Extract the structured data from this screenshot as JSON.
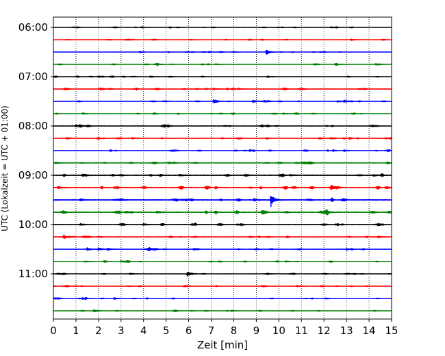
{
  "chart_data": {
    "type": "line",
    "title": "",
    "xlabel": "Zeit  [min]",
    "ylabel": "UTC (Lokalzeit = UTC + 01:00)",
    "xlim": [
      0,
      15
    ],
    "xticks": [
      0,
      1,
      2,
      3,
      4,
      5,
      6,
      7,
      8,
      9,
      10,
      11,
      12,
      13,
      14,
      15
    ],
    "xtick_labels": [
      "0",
      "1",
      "2",
      "3",
      "4",
      "5",
      "6",
      "7",
      "8",
      "9",
      "10",
      "11",
      "12",
      "13",
      "14",
      "15"
    ],
    "ytick_labels": [
      "06:00",
      "07:00",
      "08:00",
      "09:00",
      "10:00",
      "11:00"
    ],
    "ytick_rows": [
      0,
      4,
      8,
      12,
      16,
      20
    ],
    "row_interval_minutes": 15,
    "grid": "vertical dotted at each minute",
    "color_cycle": [
      "#000000",
      "#ff0000",
      "#0000ff",
      "#008000"
    ],
    "rows": [
      {
        "start": "06:00",
        "color": "#000000",
        "noise": 0.12,
        "events": [
          {
            "t": 3.9,
            "amp": 0.25
          },
          {
            "t": 12.3,
            "amp": 0.2
          }
        ]
      },
      {
        "start": "06:15",
        "color": "#ff0000",
        "noise": 0.1,
        "events": [
          {
            "t": 13.2,
            "amp": 0.3
          }
        ]
      },
      {
        "start": "06:30",
        "color": "#0000ff",
        "noise": 0.12,
        "events": [
          {
            "t": 9.45,
            "amp": 0.85
          },
          {
            "t": 6.9,
            "amp": 0.2
          }
        ]
      },
      {
        "start": "06:45",
        "color": "#008000",
        "noise": 0.12,
        "events": [
          {
            "t": 12.5,
            "amp": 0.35
          },
          {
            "t": 7.2,
            "amp": 0.2
          },
          {
            "t": 14.3,
            "amp": 0.3
          }
        ]
      },
      {
        "start": "07:00",
        "color": "#000000",
        "noise": 0.14,
        "events": [
          {
            "t": 9.5,
            "amp": 0.3
          },
          {
            "t": 4.3,
            "amp": 0.2
          }
        ]
      },
      {
        "start": "07:15",
        "color": "#ff0000",
        "noise": 0.22,
        "events": [
          {
            "t": 7.1,
            "amp": 0.3
          },
          {
            "t": 8.2,
            "amp": 0.25
          },
          {
            "t": 10.9,
            "amp": 0.3
          },
          {
            "t": 0.5,
            "amp": 0.25
          }
        ]
      },
      {
        "start": "07:30",
        "color": "#0000ff",
        "noise": 0.14,
        "events": [
          {
            "t": 7.1,
            "amp": 0.5
          },
          {
            "t": 8.85,
            "amp": 0.45
          },
          {
            "t": 12.9,
            "amp": 0.45
          },
          {
            "t": 12.6,
            "amp": 0.3
          }
        ]
      },
      {
        "start": "07:45",
        "color": "#008000",
        "noise": 0.14,
        "events": [
          {
            "t": 1.3,
            "amp": 0.25
          },
          {
            "t": 10.2,
            "amp": 0.25
          }
        ]
      },
      {
        "start": "08:00",
        "color": "#000000",
        "noise": 0.18,
        "events": [
          {
            "t": 1.0,
            "amp": 0.35
          },
          {
            "t": 4.9,
            "amp": 0.4
          },
          {
            "t": 4.8,
            "amp": 0.3
          }
        ]
      },
      {
        "start": "08:15",
        "color": "#ff0000",
        "noise": 0.18,
        "events": [
          {
            "t": 3.5,
            "amp": 0.25
          },
          {
            "t": 11.8,
            "amp": 0.35
          },
          {
            "t": 0.6,
            "amp": 0.25
          }
        ]
      },
      {
        "start": "08:30",
        "color": "#0000ff",
        "noise": 0.16,
        "events": [
          {
            "t": 8.7,
            "amp": 0.3
          },
          {
            "t": 12.4,
            "amp": 0.3
          },
          {
            "t": 12.9,
            "amp": 0.3
          }
        ]
      },
      {
        "start": "08:45",
        "color": "#008000",
        "noise": 0.18,
        "events": [
          {
            "t": 14.8,
            "amp": 0.45
          },
          {
            "t": 0.1,
            "amp": 0.25
          }
        ]
      },
      {
        "start": "09:00",
        "color": "#000000",
        "noise": 0.26,
        "events": [
          {
            "t": 14.2,
            "amp": 0.35
          },
          {
            "t": 10.5,
            "amp": 0.3
          },
          {
            "t": 5.6,
            "amp": 0.3
          }
        ]
      },
      {
        "start": "09:15",
        "color": "#ff0000",
        "noise": 0.3,
        "events": [
          {
            "t": 12.3,
            "amp": 0.95
          },
          {
            "t": 14.8,
            "amp": 0.35
          },
          {
            "t": 0.2,
            "amp": 0.35
          },
          {
            "t": 2.7,
            "amp": 0.3
          }
        ]
      },
      {
        "start": "09:30",
        "color": "#0000ff",
        "noise": 0.3,
        "events": [
          {
            "t": 9.65,
            "amp": 2.1
          },
          {
            "t": 8.9,
            "amp": 0.5
          },
          {
            "t": 1.2,
            "amp": 0.35
          },
          {
            "t": 3.0,
            "amp": 0.35
          }
        ]
      },
      {
        "start": "09:45",
        "color": "#008000",
        "noise": 0.3,
        "events": [
          {
            "t": 4.6,
            "amp": 0.45
          },
          {
            "t": 3.2,
            "amp": 0.35
          },
          {
            "t": 12.1,
            "amp": 0.35
          }
        ]
      },
      {
        "start": "10:00",
        "color": "#000000",
        "noise": 0.22,
        "events": [
          {
            "t": 7.3,
            "amp": 0.3
          },
          {
            "t": 1.2,
            "amp": 0.3
          },
          {
            "t": 4.0,
            "amp": 0.3
          }
        ]
      },
      {
        "start": "10:15",
        "color": "#ff0000",
        "noise": 0.18,
        "events": [
          {
            "t": 0.45,
            "amp": 0.45
          },
          {
            "t": 14.4,
            "amp": 0.35
          },
          {
            "t": 8.7,
            "amp": 0.3
          }
        ]
      },
      {
        "start": "10:30",
        "color": "#0000ff",
        "noise": 0.18,
        "events": [
          {
            "t": 1.5,
            "amp": 0.5
          },
          {
            "t": 2.0,
            "amp": 0.45
          },
          {
            "t": 2.4,
            "amp": 0.4
          },
          {
            "t": 13.0,
            "amp": 0.3
          }
        ]
      },
      {
        "start": "10:45",
        "color": "#008000",
        "noise": 0.14,
        "events": [
          {
            "t": 3.0,
            "amp": 0.3
          },
          {
            "t": 10.3,
            "amp": 0.3
          },
          {
            "t": 1.4,
            "amp": 0.25
          }
        ]
      },
      {
        "start": "11:00",
        "color": "#000000",
        "noise": 0.12,
        "events": [
          {
            "t": 5.95,
            "amp": 1.1
          },
          {
            "t": 3.4,
            "amp": 0.3
          },
          {
            "t": 9.5,
            "amp": 0.25
          }
        ]
      },
      {
        "start": "11:15",
        "color": "#ff0000",
        "noise": 0.12,
        "events": [
          {
            "t": 5.8,
            "amp": 0.35
          },
          {
            "t": 10.8,
            "amp": 0.3
          }
        ]
      },
      {
        "start": "11:30",
        "color": "#0000ff",
        "noise": 0.12,
        "events": [
          {
            "t": 1.3,
            "amp": 0.25
          },
          {
            "t": 2.7,
            "amp": 0.3
          }
        ]
      },
      {
        "start": "11:45",
        "color": "#008000",
        "noise": 0.12,
        "events": [
          {
            "t": 1.8,
            "amp": 0.2
          },
          {
            "t": 7.9,
            "amp": 0.2
          }
        ]
      }
    ]
  }
}
